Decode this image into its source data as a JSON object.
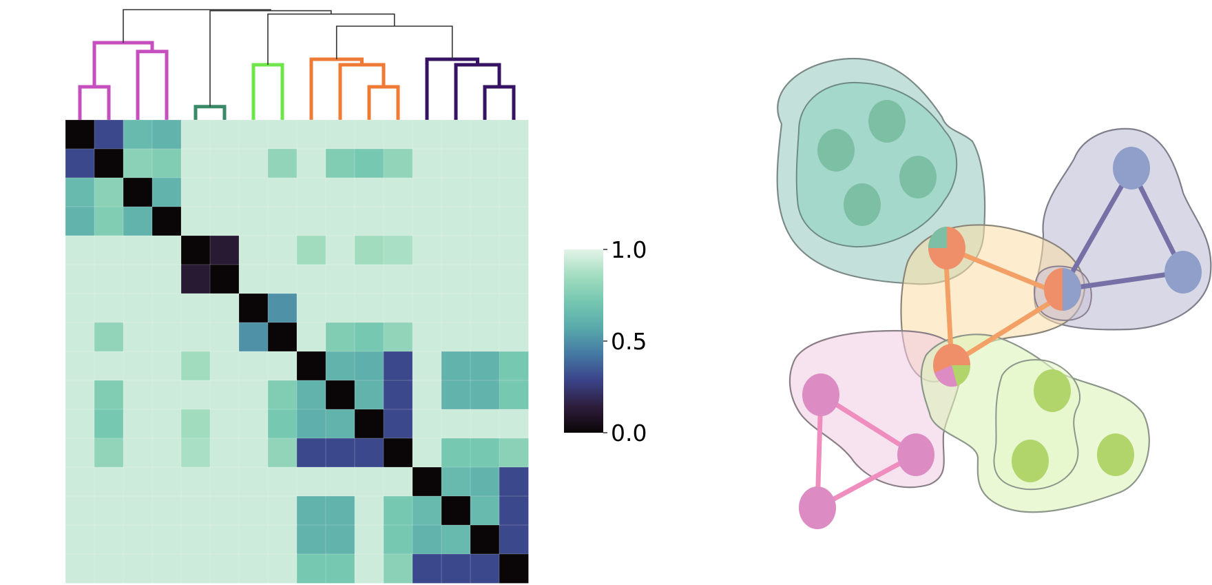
{
  "chart_data": [
    {
      "type": "heatmap",
      "title": "",
      "xlabel": "",
      "ylabel": "",
      "grid": false,
      "n": 16,
      "matrix": [
        [
          0.0,
          0.3,
          0.65,
          0.62,
          0.95,
          0.95,
          0.95,
          0.95,
          0.95,
          0.95,
          0.95,
          0.95,
          0.95,
          0.95,
          0.95,
          0.95
        ],
        [
          0.3,
          0.0,
          0.78,
          0.75,
          0.95,
          0.95,
          0.95,
          0.8,
          0.95,
          0.75,
          0.72,
          0.8,
          0.95,
          0.95,
          0.95,
          0.95
        ],
        [
          0.65,
          0.78,
          0.0,
          0.62,
          0.95,
          0.95,
          0.95,
          0.95,
          0.95,
          0.95,
          0.95,
          0.95,
          0.95,
          0.95,
          0.95,
          0.95
        ],
        [
          0.62,
          0.75,
          0.62,
          0.0,
          0.95,
          0.95,
          0.95,
          0.95,
          0.95,
          0.95,
          0.95,
          0.95,
          0.95,
          0.95,
          0.95,
          0.95
        ],
        [
          0.95,
          0.95,
          0.95,
          0.95,
          0.0,
          0.12,
          0.95,
          0.95,
          0.85,
          0.95,
          0.85,
          0.87,
          0.95,
          0.95,
          0.95,
          0.95
        ],
        [
          0.95,
          0.95,
          0.95,
          0.95,
          0.12,
          0.0,
          0.95,
          0.95,
          0.95,
          0.95,
          0.95,
          0.95,
          0.95,
          0.95,
          0.95,
          0.95
        ],
        [
          0.95,
          0.95,
          0.95,
          0.95,
          0.95,
          0.95,
          0.0,
          0.5,
          0.95,
          0.95,
          0.95,
          0.95,
          0.95,
          0.95,
          0.95,
          0.95
        ],
        [
          0.95,
          0.8,
          0.95,
          0.95,
          0.95,
          0.95,
          0.5,
          0.0,
          0.95,
          0.75,
          0.72,
          0.8,
          0.95,
          0.95,
          0.95,
          0.95
        ],
        [
          0.95,
          0.95,
          0.95,
          0.95,
          0.85,
          0.95,
          0.95,
          0.95,
          0.0,
          0.62,
          0.6,
          0.3,
          0.95,
          0.62,
          0.62,
          0.72
        ],
        [
          0.95,
          0.75,
          0.95,
          0.95,
          0.95,
          0.95,
          0.95,
          0.75,
          0.62,
          0.0,
          0.62,
          0.3,
          0.95,
          0.62,
          0.62,
          0.72
        ],
        [
          0.95,
          0.72,
          0.95,
          0.95,
          0.85,
          0.95,
          0.95,
          0.72,
          0.6,
          0.62,
          0.0,
          0.3,
          0.95,
          0.95,
          0.95,
          0.95
        ],
        [
          0.95,
          0.8,
          0.95,
          0.95,
          0.87,
          0.95,
          0.95,
          0.8,
          0.3,
          0.3,
          0.3,
          0.0,
          0.95,
          0.72,
          0.72,
          0.78
        ],
        [
          0.95,
          0.95,
          0.95,
          0.95,
          0.95,
          0.95,
          0.95,
          0.95,
          0.95,
          0.95,
          0.95,
          0.95,
          0.0,
          0.65,
          0.62,
          0.3
        ],
        [
          0.95,
          0.95,
          0.95,
          0.95,
          0.95,
          0.95,
          0.95,
          0.95,
          0.62,
          0.62,
          0.95,
          0.72,
          0.65,
          0.0,
          0.65,
          0.3
        ],
        [
          0.95,
          0.95,
          0.95,
          0.95,
          0.95,
          0.95,
          0.95,
          0.95,
          0.62,
          0.62,
          0.95,
          0.72,
          0.62,
          0.65,
          0.0,
          0.3
        ],
        [
          0.95,
          0.95,
          0.95,
          0.95,
          0.95,
          0.95,
          0.95,
          0.95,
          0.72,
          0.72,
          0.95,
          0.78,
          0.3,
          0.3,
          0.3,
          0.0
        ]
      ],
      "colorbar": {
        "range": [
          0.0,
          1.0
        ],
        "ticks": [
          "0.0",
          "0.5",
          "1.0"
        ],
        "colormap": [
          "#0a0506",
          "#2e1e3c",
          "#3b4389",
          "#4579a3",
          "#59a9ab",
          "#75c7b0",
          "#a3ddc0",
          "#e3f3e8"
        ]
      },
      "dendrogram": {
        "leaf_cluster_colors": [
          "#c54fbe",
          "#c54fbe",
          "#c54fbe",
          "#c54fbe",
          "#3a8a68",
          "#3a8a68",
          "#6ee64b",
          "#6ee64b",
          "#ee7a35",
          "#ee7a35",
          "#ee7a35",
          "#ee7a35",
          "#351263",
          "#351263",
          "#351263",
          "#351263"
        ],
        "link_color": "#333333",
        "merges": [
          {
            "a": 0,
            "b": 1,
            "h": 0.3,
            "color": "#c54fbe"
          },
          {
            "a": 2,
            "b": 3,
            "h": 0.62,
            "color": "#c54fbe"
          },
          {
            "a": 16,
            "b": 17,
            "h": 0.7,
            "color": "#c54fbe"
          },
          {
            "a": 4,
            "b": 5,
            "h": 0.12,
            "color": "#3a8a68"
          },
          {
            "a": 6,
            "b": 7,
            "h": 0.5,
            "color": "#6ee64b"
          },
          {
            "a": 10,
            "b": 11,
            "h": 0.3,
            "color": "#ee7a35"
          },
          {
            "a": 9,
            "b": 21,
            "h": 0.5,
            "color": "#ee7a35"
          },
          {
            "a": 8,
            "b": 22,
            "h": 0.55,
            "color": "#ee7a35"
          },
          {
            "a": 14,
            "b": 15,
            "h": 0.3,
            "color": "#351263"
          },
          {
            "a": 13,
            "b": 24,
            "h": 0.5,
            "color": "#351263"
          },
          {
            "a": 12,
            "b": 25,
            "h": 0.55,
            "color": "#351263"
          },
          {
            "a": 23,
            "b": 26,
            "h": 0.85,
            "color": "#333333"
          },
          {
            "a": 20,
            "b": 27,
            "h": 0.96,
            "color": "#333333"
          },
          {
            "a": 19,
            "b": 28,
            "h": 0.99,
            "color": "#333333"
          },
          {
            "a": 18,
            "b": 29,
            "h": 1.0,
            "color": "#333333"
          }
        ]
      }
    },
    {
      "type": "network",
      "title": "",
      "groups": [
        {
          "id": "teal",
          "fill": "#7bbcae",
          "inner_fill": "#8fd2bf",
          "node_color": "#7dbfa5"
        },
        {
          "id": "purple",
          "fill": "#aba9c8",
          "node_color": "#8f9fca",
          "edge_color": "#7570a6"
        },
        {
          "id": "orange",
          "fill": "#fcdfa5",
          "node_color": "#ee8f69",
          "edge_color": "#f2a065"
        },
        {
          "id": "pink",
          "fill": "#f1cbe3",
          "node_color": "#dc8cc2",
          "edge_color": "#ee8dbe"
        },
        {
          "id": "green",
          "fill": "#dcf3bb",
          "inner_fill": "#e5f7c8",
          "node_color": "#b2d56b"
        }
      ],
      "nodes": [
        {
          "id": "t1",
          "group": "teal"
        },
        {
          "id": "t2",
          "group": "teal"
        },
        {
          "id": "t3",
          "group": "teal"
        },
        {
          "id": "t4",
          "group": "teal"
        },
        {
          "id": "p1",
          "group": "purple"
        },
        {
          "id": "p2",
          "group": "purple"
        },
        {
          "id": "o1",
          "group": "orange",
          "pie": [
            "teal",
            "orange"
          ]
        },
        {
          "id": "o2",
          "group": "orange",
          "pie": [
            "orange",
            "purple"
          ]
        },
        {
          "id": "o3",
          "group": "orange",
          "pie": [
            "orange",
            "green",
            "pink"
          ]
        },
        {
          "id": "k1",
          "group": "pink"
        },
        {
          "id": "k2",
          "group": "pink"
        },
        {
          "id": "k3",
          "group": "pink"
        },
        {
          "id": "g1",
          "group": "green"
        },
        {
          "id": "g2",
          "group": "green"
        },
        {
          "id": "g3",
          "group": "green"
        }
      ],
      "edges": [
        {
          "from": "o1",
          "to": "o2",
          "group": "orange"
        },
        {
          "from": "o1",
          "to": "o3",
          "group": "orange"
        },
        {
          "from": "o2",
          "to": "o3",
          "group": "orange"
        },
        {
          "from": "o2",
          "to": "p1",
          "group": "purple"
        },
        {
          "from": "o2",
          "to": "p2",
          "group": "purple"
        },
        {
          "from": "p1",
          "to": "p2",
          "group": "purple"
        },
        {
          "from": "k1",
          "to": "k2",
          "group": "pink"
        },
        {
          "from": "k1",
          "to": "k3",
          "group": "pink"
        },
        {
          "from": "k2",
          "to": "k3",
          "group": "pink"
        }
      ]
    }
  ]
}
